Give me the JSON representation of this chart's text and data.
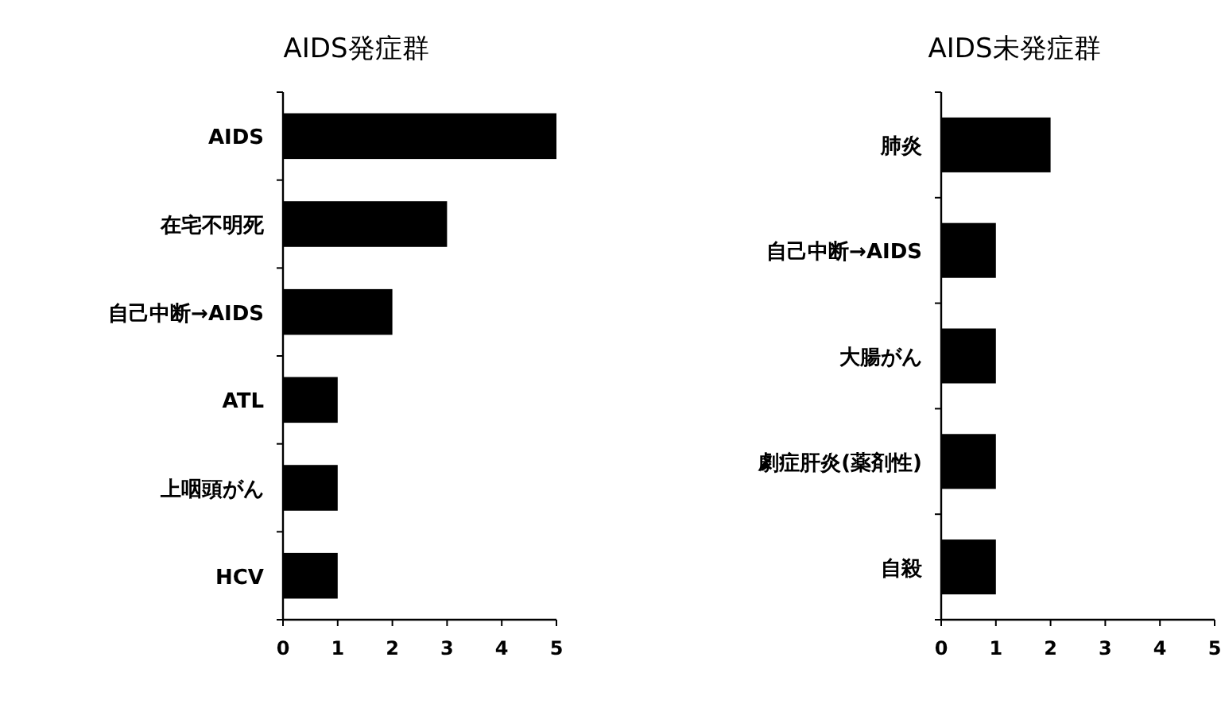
{
  "chart_data": [
    {
      "type": "bar",
      "orientation": "horizontal",
      "title": "AIDS発症群",
      "categories": [
        "AIDS",
        "在宅不明死",
        "自己中断→AIDS",
        "ATL",
        "上咽頭がん",
        "HCV"
      ],
      "values": [
        5,
        3,
        2,
        1,
        1,
        1
      ],
      "color": "#000000",
      "xlim": [
        0,
        5
      ],
      "xticks": [
        0,
        1,
        2,
        3,
        4,
        5
      ],
      "grid": false
    },
    {
      "type": "bar",
      "orientation": "horizontal",
      "title": "AIDS未発症群",
      "categories": [
        "肺炎",
        "自己中断→AIDS",
        "大腸がん",
        "劇症肝炎(薬剤性)",
        "自殺"
      ],
      "values": [
        2,
        1,
        1,
        1,
        1
      ],
      "color": "#000000",
      "xlim": [
        0,
        5
      ],
      "xticks": [
        0,
        1,
        2,
        3,
        4,
        5
      ],
      "grid": false
    }
  ]
}
